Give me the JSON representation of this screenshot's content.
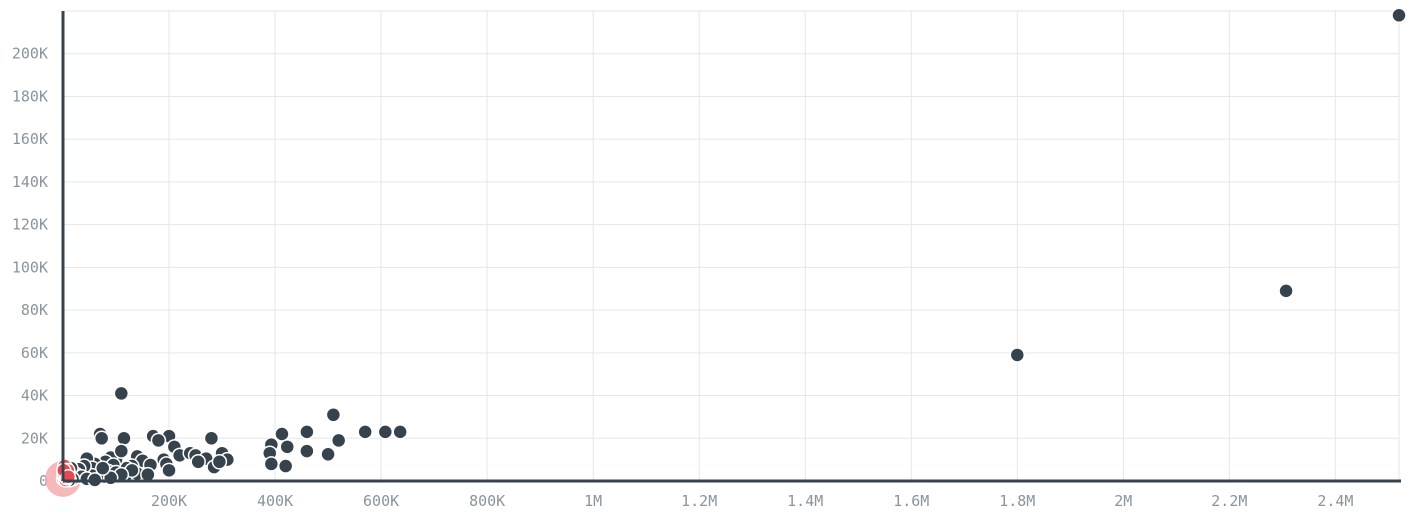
{
  "chart_data": {
    "type": "scatter",
    "title": "",
    "xlabel": "",
    "ylabel": "",
    "xlim": [
      0,
      2520000
    ],
    "ylim": [
      0,
      220000
    ],
    "grid": true,
    "x_ticks": [
      {
        "value": 200000,
        "label": "200K"
      },
      {
        "value": 400000,
        "label": "400K"
      },
      {
        "value": 600000,
        "label": "600K"
      },
      {
        "value": 800000,
        "label": "800K"
      },
      {
        "value": 1000000,
        "label": "1M"
      },
      {
        "value": 1200000,
        "label": "1.2M"
      },
      {
        "value": 1400000,
        "label": "1.4M"
      },
      {
        "value": 1600000,
        "label": "1.6M"
      },
      {
        "value": 1800000,
        "label": "1.8M"
      },
      {
        "value": 2000000,
        "label": "2M"
      },
      {
        "value": 2200000,
        "label": "2.2M"
      },
      {
        "value": 2400000,
        "label": "2.4M"
      }
    ],
    "y_ticks": [
      {
        "value": 0,
        "label": "0"
      },
      {
        "value": 20000,
        "label": "20K"
      },
      {
        "value": 40000,
        "label": "40K"
      },
      {
        "value": 60000,
        "label": "60K"
      },
      {
        "value": 80000,
        "label": "80K"
      },
      {
        "value": 100000,
        "label": "100K"
      },
      {
        "value": 120000,
        "label": "120K"
      },
      {
        "value": 140000,
        "label": "140K"
      },
      {
        "value": 160000,
        "label": "160K"
      },
      {
        "value": 180000,
        "label": "180K"
      },
      {
        "value": 200000,
        "label": "200K"
      }
    ],
    "series": [
      {
        "color": "#37434c",
        "points": [
          [
            2520000,
            218000
          ],
          [
            2307000,
            89000
          ],
          [
            1800000,
            59000
          ],
          [
            110000,
            41000
          ],
          [
            510000,
            31000
          ],
          [
            570000,
            23000
          ],
          [
            608000,
            23000
          ],
          [
            636000,
            23000
          ],
          [
            460000,
            23000
          ],
          [
            520000,
            19000
          ],
          [
            413000,
            22000
          ],
          [
            423000,
            16000
          ],
          [
            393000,
            17000
          ],
          [
            390000,
            13000
          ],
          [
            393000,
            8000
          ],
          [
            420000,
            7000
          ],
          [
            460000,
            14000
          ],
          [
            500000,
            12500
          ],
          [
            70000,
            22000
          ],
          [
            73000,
            20000
          ],
          [
            115000,
            20000
          ],
          [
            170000,
            21000
          ],
          [
            200000,
            21000
          ],
          [
            180000,
            19000
          ],
          [
            280000,
            20000
          ],
          [
            210000,
            16000
          ],
          [
            220000,
            12000
          ],
          [
            240000,
            13000
          ],
          [
            250000,
            12000
          ],
          [
            270000,
            10500
          ],
          [
            300000,
            13000
          ],
          [
            310000,
            10000
          ],
          [
            255000,
            9000
          ],
          [
            285000,
            6500
          ],
          [
            295000,
            9000
          ],
          [
            190000,
            10000
          ],
          [
            195000,
            8000
          ],
          [
            200000,
            5000
          ],
          [
            140000,
            11500
          ],
          [
            150000,
            9500
          ],
          [
            165000,
            7500
          ],
          [
            130000,
            7000
          ],
          [
            120000,
            6000
          ],
          [
            100000,
            10000
          ],
          [
            90000,
            11000
          ],
          [
            80000,
            9000
          ],
          [
            60000,
            8000
          ],
          [
            45000,
            10500
          ],
          [
            110000,
            14000
          ],
          [
            95000,
            7500
          ],
          [
            85000,
            4500
          ],
          [
            100000,
            4000
          ],
          [
            120000,
            3000
          ],
          [
            140000,
            3500
          ],
          [
            160000,
            3000
          ],
          [
            130000,
            5000
          ],
          [
            110000,
            3000
          ],
          [
            70000,
            4000
          ],
          [
            55000,
            6000
          ],
          [
            55000,
            2500
          ],
          [
            40000,
            7000
          ],
          [
            30000,
            5500
          ],
          [
            25000,
            3000
          ],
          [
            20000,
            1500
          ],
          [
            35000,
            2000
          ],
          [
            45000,
            1000
          ],
          [
            80000,
            2000
          ],
          [
            90000,
            1500
          ],
          [
            75000,
            6000
          ],
          [
            15000,
            6000
          ],
          [
            10000,
            4000
          ],
          [
            5000,
            2500
          ],
          [
            18000,
            1000
          ],
          [
            12000,
            500
          ],
          [
            60000,
            500
          ]
        ]
      },
      {
        "color": "#e8494f",
        "points": [
          [
            1000,
            1000
          ],
          [
            3000,
            2000
          ],
          [
            5000,
            500
          ],
          [
            2000,
            3500
          ],
          [
            7000,
            1500
          ],
          [
            4000,
            4500
          ],
          [
            8000,
            3000
          ],
          [
            6000,
            6000
          ],
          [
            3000,
            7000
          ],
          [
            9000,
            5000
          ],
          [
            1500,
            5000
          ],
          [
            10000,
            2000
          ]
        ]
      }
    ],
    "highlight": {
      "x": 0,
      "y": 1000,
      "color": "#f4a7aa"
    }
  }
}
